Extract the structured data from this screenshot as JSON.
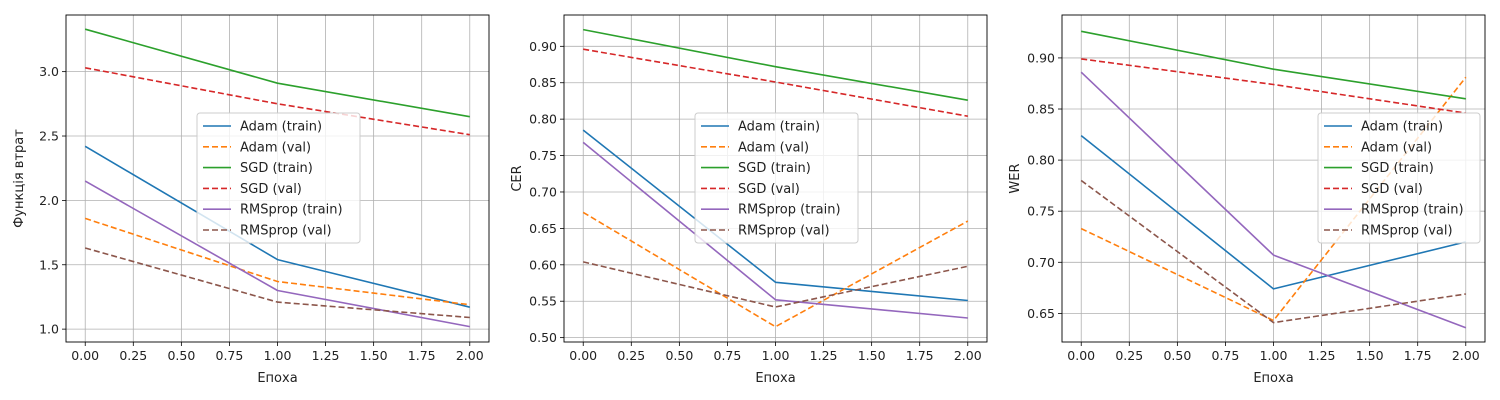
{
  "chart_data": [
    {
      "type": "line",
      "xlabel": "Епоха",
      "ylabel": "Функція втрат",
      "x": [
        0,
        1,
        2
      ],
      "xlim": [
        -0.1,
        2.1
      ],
      "ylim": [
        0.9,
        3.44
      ],
      "xticks": [
        "0.00",
        "0.25",
        "0.50",
        "0.75",
        "1.00",
        "1.25",
        "1.50",
        "1.75",
        "2.00"
      ],
      "yticks": [
        "1.0",
        "1.5",
        "2.0",
        "2.5",
        "3.0"
      ],
      "grid": true,
      "legend": "center-right",
      "series": [
        {
          "name": "Adam (train)",
          "values": [
            2.42,
            1.54,
            1.17
          ],
          "color": "#1f77b4",
          "dash": false
        },
        {
          "name": "Adam (val)",
          "values": [
            1.86,
            1.37,
            1.19
          ],
          "color": "#ff7f0e",
          "dash": true
        },
        {
          "name": "SGD (train)",
          "values": [
            3.33,
            2.91,
            2.65
          ],
          "color": "#2ca02c",
          "dash": false
        },
        {
          "name": "SGD (val)",
          "values": [
            3.03,
            2.75,
            2.51
          ],
          "color": "#d62728",
          "dash": true
        },
        {
          "name": "RMSprop (train)",
          "values": [
            2.15,
            1.3,
            1.02
          ],
          "color": "#9467bd",
          "dash": false
        },
        {
          "name": "RMSprop (val)",
          "values": [
            1.63,
            1.21,
            1.09
          ],
          "color": "#8c564b",
          "dash": true
        }
      ]
    },
    {
      "type": "line",
      "xlabel": "Епоха",
      "ylabel": "CER",
      "x": [
        0,
        1,
        2
      ],
      "xlim": [
        -0.1,
        2.1
      ],
      "ylim": [
        0.494,
        0.943
      ],
      "xticks": [
        "0.00",
        "0.25",
        "0.50",
        "0.75",
        "1.00",
        "1.25",
        "1.50",
        "1.75",
        "2.00"
      ],
      "yticks": [
        "0.50",
        "0.55",
        "0.60",
        "0.65",
        "0.70",
        "0.75",
        "0.80",
        "0.85",
        "0.90"
      ],
      "grid": true,
      "legend": "center",
      "series": [
        {
          "name": "Adam (train)",
          "values": [
            0.785,
            0.576,
            0.551
          ],
          "color": "#1f77b4",
          "dash": false
        },
        {
          "name": "Adam (val)",
          "values": [
            0.672,
            0.515,
            0.66
          ],
          "color": "#ff7f0e",
          "dash": true
        },
        {
          "name": "SGD (train)",
          "values": [
            0.923,
            0.872,
            0.826
          ],
          "color": "#2ca02c",
          "dash": false
        },
        {
          "name": "SGD (val)",
          "values": [
            0.896,
            0.851,
            0.804
          ],
          "color": "#d62728",
          "dash": true
        },
        {
          "name": "RMSprop (train)",
          "values": [
            0.768,
            0.552,
            0.527
          ],
          "color": "#9467bd",
          "dash": false
        },
        {
          "name": "RMSprop (val)",
          "values": [
            0.604,
            0.542,
            0.598
          ],
          "color": "#8c564b",
          "dash": true
        }
      ]
    },
    {
      "type": "line",
      "xlabel": "Епоха",
      "ylabel": "WER",
      "x": [
        0,
        1,
        2
      ],
      "xlim": [
        -0.1,
        2.1
      ],
      "ylim": [
        0.622,
        0.942
      ],
      "xticks": [
        "0.00",
        "0.25",
        "0.50",
        "0.75",
        "1.00",
        "1.25",
        "1.50",
        "1.75",
        "2.00"
      ],
      "yticks": [
        "0.65",
        "0.70",
        "0.75",
        "0.80",
        "0.85",
        "0.90"
      ],
      "grid": true,
      "legend": "center-right",
      "series": [
        {
          "name": "Adam (train)",
          "values": [
            0.824,
            0.674,
            0.72
          ],
          "color": "#1f77b4",
          "dash": false
        },
        {
          "name": "Adam (val)",
          "values": [
            0.733,
            0.643,
            0.881
          ],
          "color": "#ff7f0e",
          "dash": true
        },
        {
          "name": "SGD (train)",
          "values": [
            0.926,
            0.889,
            0.86
          ],
          "color": "#2ca02c",
          "dash": false
        },
        {
          "name": "SGD (val)",
          "values": [
            0.899,
            0.874,
            0.846
          ],
          "color": "#d62728",
          "dash": true
        },
        {
          "name": "RMSprop (train)",
          "values": [
            0.886,
            0.707,
            0.636
          ],
          "color": "#9467bd",
          "dash": false
        },
        {
          "name": "RMSprop (val)",
          "values": [
            0.78,
            0.641,
            0.669
          ],
          "color": "#8c564b",
          "dash": true
        }
      ]
    }
  ]
}
